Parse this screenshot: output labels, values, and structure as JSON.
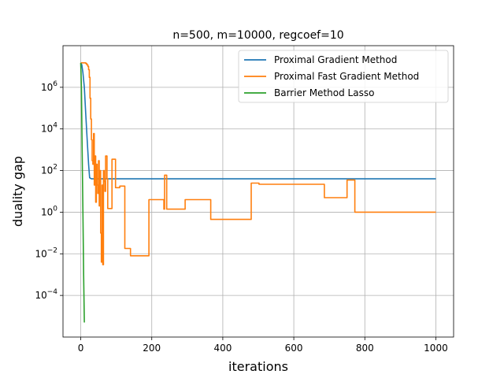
{
  "chart_data": {
    "type": "line",
    "title": "n=500, m=10000, regcoef=10",
    "xlabel": "iterations",
    "ylabel": "duality gap",
    "xlim": [
      -50,
      1050
    ],
    "ylim": [
      1e-06,
      100000000.0
    ],
    "yscale": "log",
    "grid": true,
    "legend": "top-right",
    "x_ticks": [
      0,
      200,
      400,
      600,
      800,
      1000
    ],
    "x_tick_labels": [
      "0",
      "200",
      "400",
      "600",
      "800",
      "1000"
    ],
    "y_ticks": [
      0.0001,
      0.01,
      1,
      100,
      10000,
      1000000
    ],
    "y_tick_labels": [
      {
        "base": "10",
        "exp": "−4"
      },
      {
        "base": "10",
        "exp": "−2"
      },
      {
        "base": "10",
        "exp": "0"
      },
      {
        "base": "10",
        "exp": "2"
      },
      {
        "base": "10",
        "exp": "4"
      },
      {
        "base": "10",
        "exp": "6"
      }
    ],
    "series": [
      {
        "name": "Proximal Gradient Method",
        "color": "#1f77b4",
        "step": false,
        "points": [
          [
            0,
            15000000
          ],
          [
            3,
            12000000
          ],
          [
            6,
            5000000
          ],
          [
            10,
            1000000
          ],
          [
            14,
            50000
          ],
          [
            18,
            3000
          ],
          [
            22,
            200
          ],
          [
            25,
            45
          ],
          [
            30,
            40
          ],
          [
            100,
            40
          ],
          [
            1000,
            40
          ]
        ]
      },
      {
        "name": "Proximal Fast Gradient Method",
        "color": "#ff7f0e",
        "step": true,
        "points": [
          [
            0,
            15000000
          ],
          [
            10,
            15000000
          ],
          [
            14,
            14000000
          ],
          [
            17,
            12000000
          ],
          [
            20,
            10000000
          ],
          [
            22,
            7000000
          ],
          [
            24,
            3000000
          ],
          [
            26,
            300000
          ],
          [
            28,
            30000
          ],
          [
            30,
            3000
          ],
          [
            32,
            300
          ],
          [
            34,
            200
          ],
          [
            36,
            6000
          ],
          [
            38,
            20
          ],
          [
            40,
            500
          ],
          [
            42,
            3
          ],
          [
            44,
            200
          ],
          [
            46,
            20
          ],
          [
            48,
            8
          ],
          [
            50,
            300
          ],
          [
            52,
            2
          ],
          [
            54,
            100
          ],
          [
            56,
            0.1
          ],
          [
            58,
            0.004
          ],
          [
            60,
            20
          ],
          [
            62,
            0.003
          ],
          [
            64,
            100
          ],
          [
            66,
            30
          ],
          [
            68,
            10
          ],
          [
            70,
            500
          ],
          [
            74,
            40
          ],
          [
            76,
            1.5
          ],
          [
            86,
            1.5
          ],
          [
            88,
            350
          ],
          [
            96,
            350
          ],
          [
            98,
            15
          ],
          [
            108,
            15
          ],
          [
            110,
            18
          ],
          [
            122,
            18
          ],
          [
            124,
            0.018
          ],
          [
            138,
            0.018
          ],
          [
            140,
            0.008
          ],
          [
            190,
            0.008
          ],
          [
            192,
            4
          ],
          [
            232,
            4
          ],
          [
            234,
            1.4
          ],
          [
            236,
            60
          ],
          [
            240,
            60
          ],
          [
            242,
            1.4
          ],
          [
            292,
            1.4
          ],
          [
            294,
            4
          ],
          [
            364,
            4
          ],
          [
            366,
            0.45
          ],
          [
            478,
            0.45
          ],
          [
            480,
            25
          ],
          [
            500,
            25
          ],
          [
            502,
            22
          ],
          [
            684,
            22
          ],
          [
            686,
            5
          ],
          [
            748,
            5
          ],
          [
            750,
            35
          ],
          [
            770,
            35
          ],
          [
            772,
            1
          ],
          [
            1000,
            1
          ]
        ]
      },
      {
        "name": "Barrier Method Lasso",
        "color": "#2ca02c",
        "step": false,
        "points": [
          [
            0,
            15000000
          ],
          [
            2,
            1000000
          ],
          [
            4,
            1000
          ],
          [
            6,
            1
          ],
          [
            8,
            0.001
          ],
          [
            10,
            5e-06
          ]
        ]
      }
    ]
  }
}
